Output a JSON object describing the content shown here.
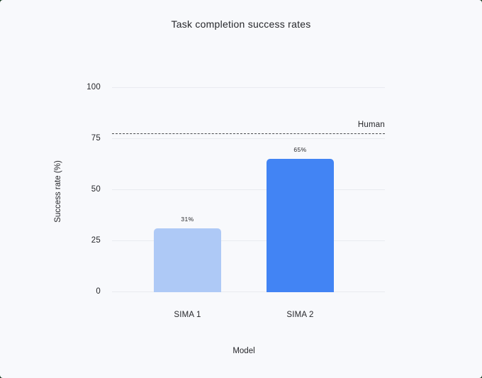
{
  "window": {
    "card_background": "#f8f9fc",
    "frame_color": "#15391f"
  },
  "chart_data": {
    "type": "bar",
    "title": "Task completion success rates",
    "categories": [
      "SIMA 1",
      "SIMA 2"
    ],
    "values": [
      31,
      65
    ],
    "value_labels": [
      "31%",
      "65%"
    ],
    "xlabel": "Model",
    "ylabel": "Success rate (%)",
    "yticks": [
      0,
      25,
      50,
      75,
      100
    ],
    "ylim": [
      0,
      100
    ],
    "grid": "horizontal",
    "legend_position": "none",
    "bar_colors": [
      "#aec9f6",
      "#4284f4"
    ],
    "gridline_color": "#e9ebf0",
    "text_color": "#26272b",
    "reference_line": {
      "label": "Human",
      "value": 77,
      "style": "dashed",
      "color": "#494b4e"
    }
  }
}
